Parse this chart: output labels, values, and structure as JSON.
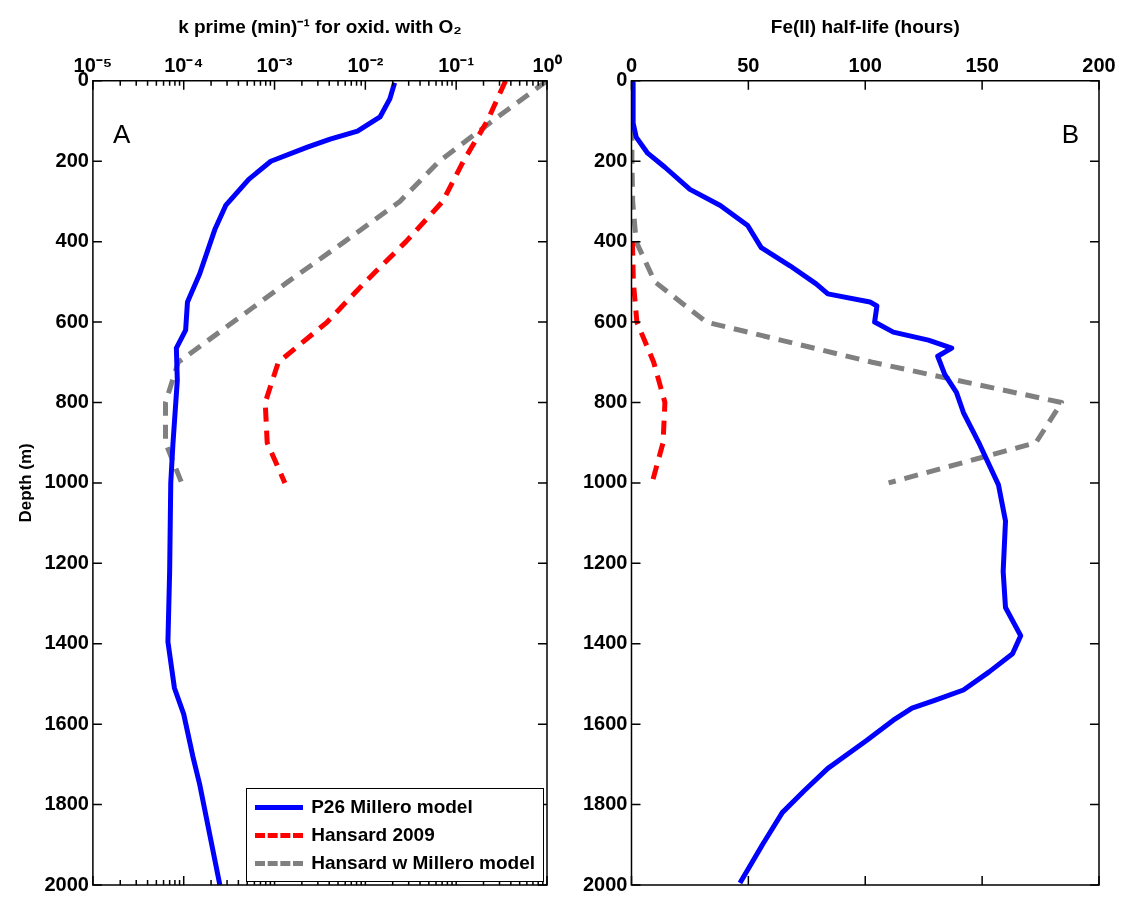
{
  "chart_data": [
    {
      "type": "line",
      "xlabel": "k prime (min)⁻¹ for oxid. with O₂",
      "ylabel": "Depth (m)",
      "annotations": [
        "A"
      ],
      "log": "x",
      "legend": "bottom right",
      "marker": "none",
      "xlim": [
        1e-05,
        1
      ],
      "ylim": [
        2000,
        0
      ],
      "xticks": [
        {
          "value": 1e-05,
          "label": "10⁻⁵"
        },
        {
          "value": 2e-05,
          "label": null
        },
        {
          "value": 3e-05,
          "label": null
        },
        {
          "value": 4e-05,
          "label": null
        },
        {
          "value": 5e-05,
          "label": null
        },
        {
          "value": 6e-05,
          "label": null
        },
        {
          "value": 7e-05,
          "label": null
        },
        {
          "value": 8e-05,
          "label": null
        },
        {
          "value": 9e-05,
          "label": null
        },
        {
          "value": 0.0001,
          "label": "10⁻⁴"
        },
        {
          "value": 0.0002,
          "label": null
        },
        {
          "value": 0.0003,
          "label": null
        },
        {
          "value": 0.0004,
          "label": null
        },
        {
          "value": 0.0005,
          "label": null
        },
        {
          "value": 0.0006,
          "label": null
        },
        {
          "value": 0.0007,
          "label": null
        },
        {
          "value": 0.0008,
          "label": null
        },
        {
          "value": 0.0009,
          "label": null
        },
        {
          "value": 0.001,
          "label": "10⁻³"
        },
        {
          "value": 0.002,
          "label": null
        },
        {
          "value": 0.003,
          "label": null
        },
        {
          "value": 0.004,
          "label": null
        },
        {
          "value": 0.005,
          "label": null
        },
        {
          "value": 0.006,
          "label": null
        },
        {
          "value": 0.007,
          "label": null
        },
        {
          "value": 0.008,
          "label": null
        },
        {
          "value": 0.009,
          "label": null
        },
        {
          "value": 0.01,
          "label": "10⁻²"
        },
        {
          "value": 0.02,
          "label": null
        },
        {
          "value": 0.03,
          "label": null
        },
        {
          "value": 0.04,
          "label": null
        },
        {
          "value": 0.05,
          "label": null
        },
        {
          "value": 0.06,
          "label": null
        },
        {
          "value": 0.07,
          "label": null
        },
        {
          "value": 0.08,
          "label": null
        },
        {
          "value": 0.09,
          "label": null
        },
        {
          "value": 0.1,
          "label": "10⁻¹"
        },
        {
          "value": 0.2,
          "label": null
        },
        {
          "value": 0.3,
          "label": null
        },
        {
          "value": 0.4,
          "label": null
        },
        {
          "value": 0.5,
          "label": null
        },
        {
          "value": 0.6,
          "label": null
        },
        {
          "value": 0.7,
          "label": null
        },
        {
          "value": 0.8,
          "label": null
        },
        {
          "value": 0.9,
          "label": null
        },
        {
          "value": 1,
          "label": "10⁰"
        }
      ],
      "yticks": [
        0,
        200,
        400,
        600,
        800,
        1000,
        1200,
        1400,
        1600,
        1800,
        2000
      ],
      "series": [
        {
          "name": "P26 Millero model",
          "color": "#0000ff",
          "line_style": "solid",
          "x": [
            0.021,
            0.0186,
            0.0145,
            0.0082,
            0.0041,
            0.0023,
            0.00091,
            0.00052,
            0.00029,
            0.00022,
            0.00015,
            0.00011,
            0.000105,
            8.3e-05,
            8.5e-05,
            7.6e-05,
            7.2e-05,
            7e-05,
            6.7e-05,
            7.9e-05,
            0.0001,
            0.000126,
            0.00015,
            0.00025
          ],
          "values": [
            5,
            45,
            90,
            125,
            145,
            165,
            200,
            245,
            310,
            370,
            480,
            550,
            620,
            665,
            745,
            905,
            1000,
            1220,
            1395,
            1510,
            1575,
            1680,
            1750,
            2000
          ]
        },
        {
          "name": "Hansard 2009",
          "color": "#ff0000",
          "line_style": "dashed",
          "x": [
            0.35,
            0.22,
            0.12,
            0.071,
            0.028,
            0.01,
            0.0038,
            0.0011,
            0.00079,
            0.00083,
            0.0013
          ],
          "values": [
            0,
            100,
            200,
            300,
            400,
            500,
            600,
            700,
            800,
            900,
            1000
          ]
        },
        {
          "name": "Hansard w Millero model",
          "color": "#808080",
          "line_style": "dashed",
          "x": [
            1,
            0.25,
            0.065,
            0.024,
            0.0059,
            0.0014,
            0.00035,
            8.7e-05,
            6.3e-05,
            6.3e-05,
            9.5e-05
          ],
          "values": [
            0,
            100,
            200,
            300,
            400,
            500,
            600,
            700,
            800,
            900,
            1000
          ]
        }
      ]
    },
    {
      "type": "line",
      "xlabel": "Fe(II) half-life (hours)",
      "annotations": [
        "B"
      ],
      "marker": "none",
      "xlim": [
        0,
        200
      ],
      "ylim": [
        2000,
        0
      ],
      "xticks": [
        0,
        50,
        100,
        150,
        200
      ],
      "yticks": [
        0,
        200,
        400,
        600,
        800,
        1000,
        1200,
        1400,
        1600,
        1800,
        2000
      ],
      "series": [
        {
          "color": "#0000ff",
          "line_style": "solid",
          "x": [
            0.7,
            0.7,
            2,
            6.9,
            14.3,
            25,
            38,
            49.7,
            55.5,
            67.8,
            79,
            84,
            102,
            105,
            104,
            112,
            127,
            137,
            131,
            134,
            139,
            142,
            149,
            157,
            160,
            159,
            160,
            166.5,
            163,
            153,
            142,
            130,
            120,
            112,
            100.7,
            84,
            74,
            64.5,
            56,
            46.4
          ],
          "values": [
            5,
            105,
            140,
            180,
            215,
            270,
            310,
            360,
            415,
            460,
            505,
            530,
            550,
            560,
            600,
            625,
            645,
            665,
            685,
            730,
            775,
            825,
            905,
            1005,
            1095,
            1220,
            1310,
            1380,
            1425,
            1470,
            1515,
            1540,
            1560,
            1590,
            1640,
            1710,
            1765,
            1820,
            1900,
            1995
          ]
        },
        {
          "color": "#ff0000",
          "line_style": "dashed",
          "x": [
            null,
            null,
            null,
            null,
            0.4,
            0.8,
            2.3,
            9.5,
            14.3,
            13.5,
            8.8
          ],
          "values": [
            null,
            null,
            null,
            null,
            400,
            500,
            600,
            700,
            800,
            900,
            1000
          ]
        },
        {
          "color": "#808080",
          "line_style": "dashed",
          "x": [
            0,
            0.1,
            0.2,
            0.5,
            2,
            10,
            32,
            103,
            184,
            173,
            110
          ],
          "values": [
            0,
            100,
            200,
            300,
            400,
            500,
            600,
            700,
            800,
            900,
            1000
          ]
        }
      ]
    }
  ]
}
